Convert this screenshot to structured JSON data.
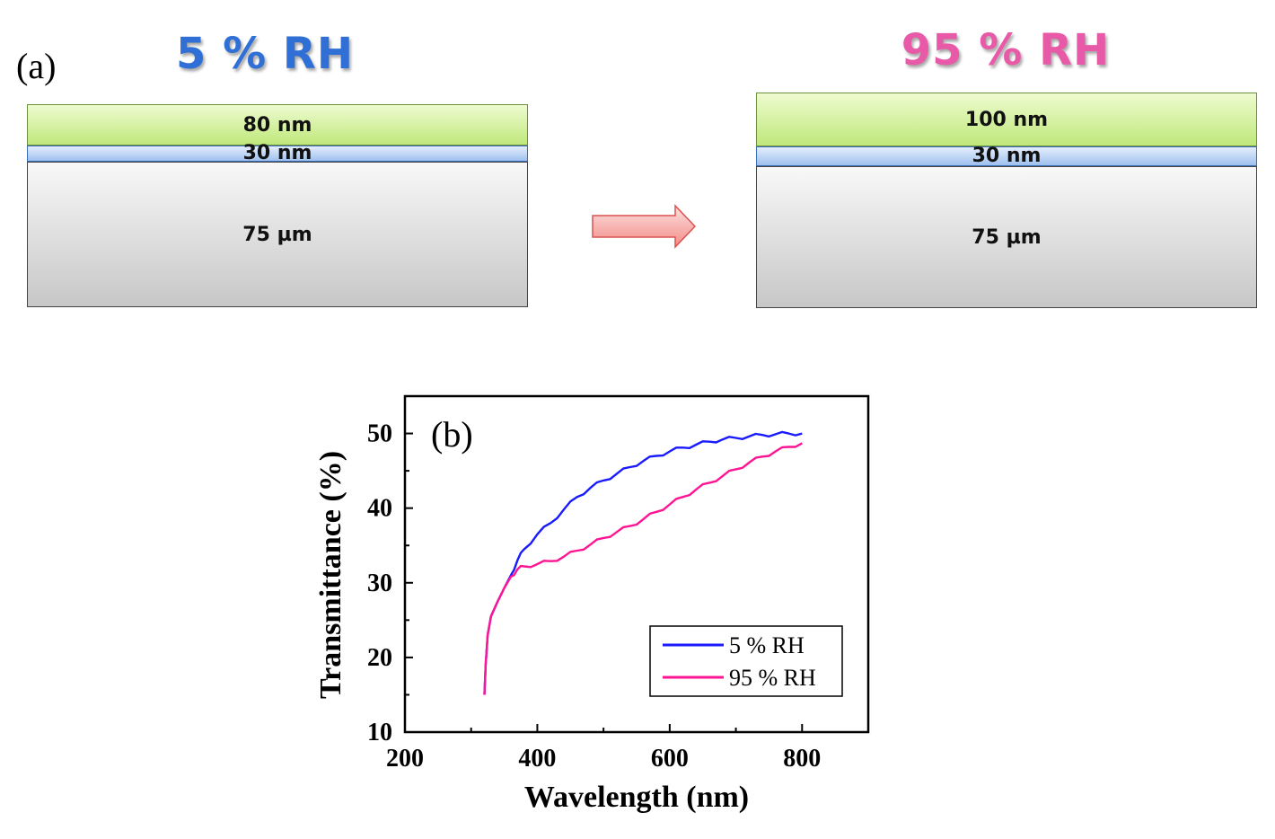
{
  "panel_a": {
    "label": "(a)",
    "left": {
      "title": "5 % RH",
      "title_color": "#2f6fd6",
      "top_layer": "80 nm",
      "middle_layer": "30 nm",
      "substrate": "75 µm"
    },
    "right": {
      "title": "95 % RH",
      "title_color": "#e85aa8",
      "top_layer": "100 nm",
      "middle_layer": "30 nm",
      "substrate": "75 µm"
    },
    "arrow_color": "#f4a3a0"
  },
  "chart_data": {
    "type": "line",
    "panel_label": "(b)",
    "xlabel": "Wavelength (nm)",
    "ylabel": "Transmittance (%)",
    "xlim": [
      200,
      900
    ],
    "ylim": [
      10,
      55
    ],
    "xticks": [
      200,
      400,
      600,
      800
    ],
    "yticks": [
      10,
      20,
      30,
      40,
      50
    ],
    "legend_position": "bottom-right",
    "series": [
      {
        "name": "5 % RH",
        "color": "#1a1aff",
        "x": [
          320,
          322,
          325,
          330,
          340,
          350,
          360,
          370,
          380,
          400,
          420,
          440,
          460,
          480,
          500,
          520,
          540,
          560,
          580,
          600,
          620,
          640,
          660,
          680,
          700,
          720,
          740,
          760,
          780,
          800
        ],
        "y": [
          15,
          19,
          23,
          25.5,
          27.5,
          29.3,
          31,
          33,
          34.5,
          36.5,
          38,
          39.8,
          41.5,
          42.7,
          43.7,
          44.6,
          45.5,
          46.3,
          47,
          47.6,
          48.1,
          48.5,
          48.9,
          49.2,
          49.4,
          49.6,
          49.8,
          49.9,
          50,
          50
        ]
      },
      {
        "name": "95 % RH",
        "color": "#ff1493",
        "x": [
          320,
          322,
          325,
          330,
          340,
          350,
          360,
          370,
          380,
          400,
          420,
          440,
          460,
          480,
          500,
          520,
          540,
          560,
          580,
          600,
          620,
          640,
          660,
          680,
          700,
          720,
          740,
          760,
          780,
          800
        ],
        "y": [
          15,
          19,
          23,
          25.5,
          27.5,
          29.3,
          30.8,
          31.8,
          32.2,
          32.5,
          32.9,
          33.5,
          34.3,
          35.1,
          36,
          36.8,
          37.6,
          38.5,
          39.5,
          40.5,
          41.5,
          42.5,
          43.4,
          44.3,
          45.2,
          46.1,
          46.9,
          47.6,
          48.2,
          48.7
        ]
      }
    ]
  }
}
